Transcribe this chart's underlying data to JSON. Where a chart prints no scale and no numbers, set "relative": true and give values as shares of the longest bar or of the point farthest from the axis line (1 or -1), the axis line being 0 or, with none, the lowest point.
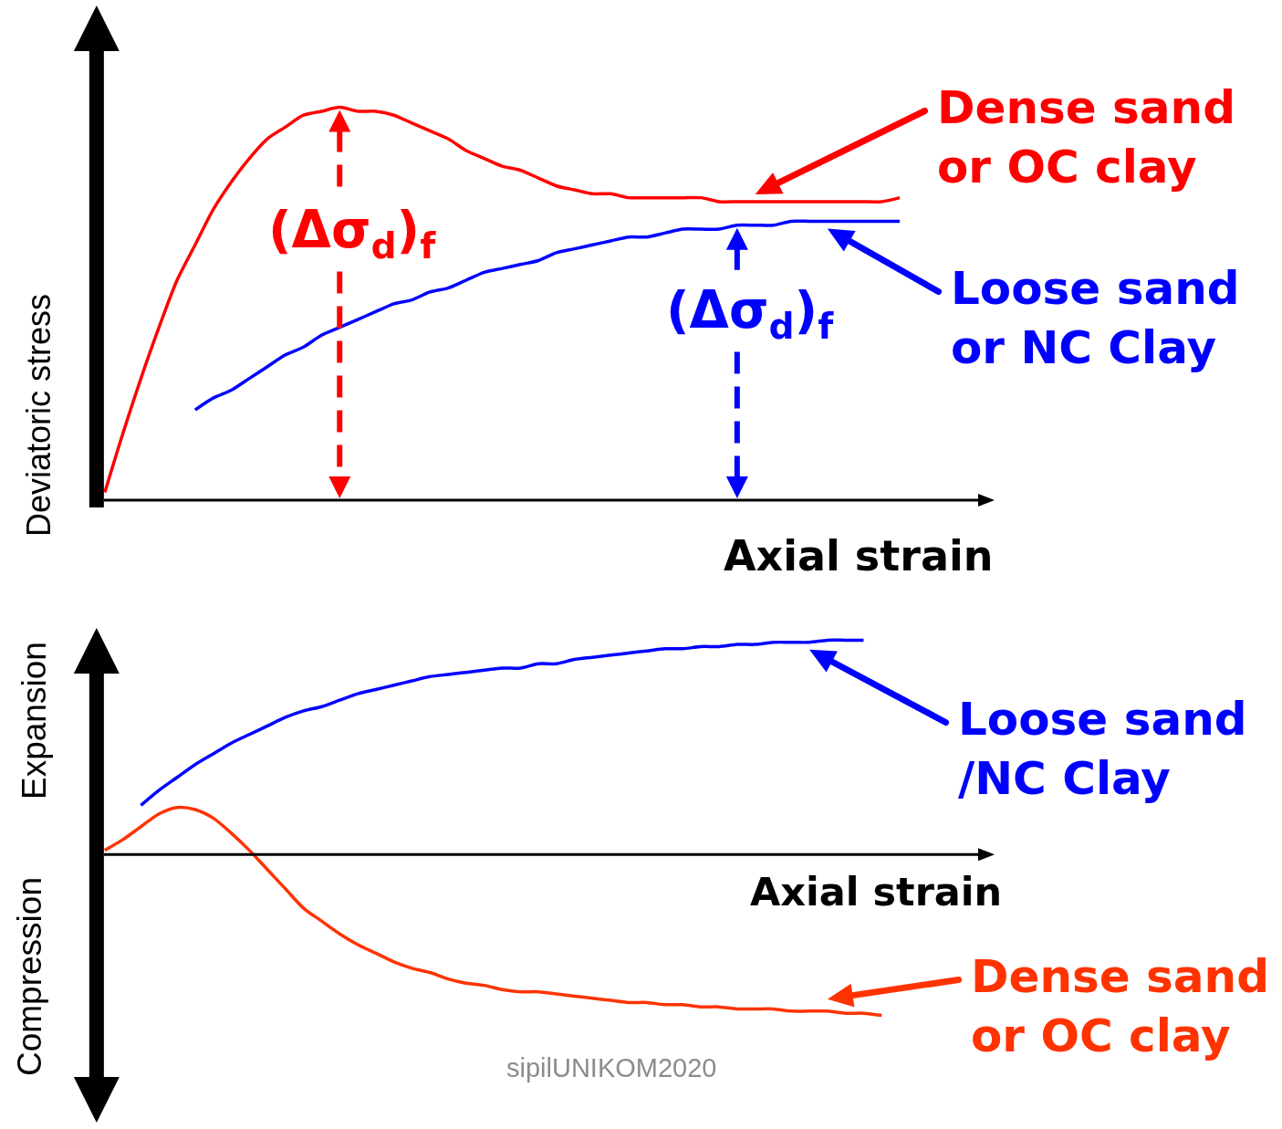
{
  "chart_data": [
    {
      "type": "line",
      "relative": true,
      "xlabel": "Axial strain",
      "ylabel": "Deviatoric stress",
      "legend": "top right",
      "categories": [
        null,
        null,
        null,
        null,
        null,
        null,
        null,
        null,
        null,
        null,
        null,
        null,
        null,
        null,
        null,
        null,
        null,
        null,
        null,
        null,
        null,
        null,
        null,
        null,
        null,
        null,
        null,
        null,
        null,
        null,
        null,
        null,
        null,
        null,
        null,
        null,
        null,
        null,
        null,
        null,
        null,
        null,
        null,
        null,
        null
      ],
      "series": [
        {
          "name": "Dense sand or OC clay",
          "color": "#ff0000",
          "values": [
            0.02,
            0.17,
            0.31,
            0.44,
            0.56,
            0.65,
            0.74,
            0.81,
            0.87,
            0.92,
            0.95,
            0.98,
            0.99,
            1,
            0.99,
            0.99,
            0.98,
            0.96,
            0.94,
            0.92,
            0.89,
            0.87,
            0.85,
            0.84,
            0.82,
            0.8,
            0.79,
            0.78,
            0.78,
            0.77,
            0.77,
            0.77,
            0.77,
            0.77,
            0.76,
            0.76,
            0.76,
            0.76,
            0.76,
            0.76,
            0.76,
            0.76,
            0.76,
            0.76,
            0.77
          ]
        },
        {
          "name": "Loose sand or NC Clay",
          "color": "#0000ff",
          "values": [
            null,
            null,
            null,
            null,
            null,
            0.23,
            0.26,
            0.28,
            0.31,
            0.34,
            0.37,
            0.39,
            0.42,
            0.44,
            0.46,
            0.48,
            0.5,
            0.51,
            0.53,
            0.54,
            0.56,
            0.58,
            0.59,
            0.6,
            0.61,
            0.63,
            0.64,
            0.65,
            0.66,
            0.67,
            0.67,
            0.68,
            0.69,
            0.69,
            0.69,
            0.7,
            0.7,
            0.7,
            0.71,
            0.71,
            0.71,
            0.71,
            0.71,
            0.71,
            0.71
          ]
        }
      ],
      "annotations": [
        {
          "text": "(Δσ$_{d}$)$_{f}$",
          "y": 1
        },
        {
          "text": "(Δσ$_{d}$)$_{f}$",
          "y": 0.7
        }
      ]
    },
    {
      "type": "line",
      "relative": true,
      "xlabel": "Axial strain",
      "legend": "right",
      "categories": [
        null,
        null,
        null,
        null,
        null,
        null,
        null,
        null,
        null,
        null,
        null,
        null,
        null,
        null,
        null,
        null,
        null,
        null,
        null,
        null,
        null,
        null,
        null,
        null,
        null,
        null,
        null,
        null,
        null,
        null,
        null,
        null,
        null,
        null,
        null,
        null,
        null,
        null,
        null,
        null,
        null,
        null,
        null,
        null,
        null
      ],
      "series": [
        {
          "name": "Loose sand /NC Clay",
          "color": "#0000ff",
          "values": [
            null,
            null,
            0.23,
            0.3,
            0.36,
            0.42,
            0.47,
            0.52,
            0.56,
            0.6,
            0.64,
            0.67,
            0.69,
            0.72,
            0.75,
            0.77,
            0.79,
            0.81,
            0.83,
            0.84,
            0.85,
            0.86,
            0.87,
            0.87,
            0.89,
            0.89,
            0.91,
            0.92,
            0.93,
            0.94,
            0.95,
            0.96,
            0.96,
            0.97,
            0.97,
            0.98,
            0.98,
            0.99,
            0.99,
            0.99,
            1,
            1,
            1,
            null,
            null
          ]
        },
        {
          "name": "Dense sand or OC clay",
          "color": "#ff3300",
          "values": [
            0.02,
            0.07,
            0.13,
            0.19,
            0.22,
            0.21,
            0.17,
            0.1,
            0.02,
            -0.07,
            -0.16,
            -0.25,
            -0.31,
            -0.37,
            -0.42,
            -0.46,
            -0.5,
            -0.53,
            -0.55,
            -0.58,
            -0.6,
            -0.61,
            -0.63,
            -0.64,
            -0.64,
            -0.65,
            -0.66,
            -0.67,
            -0.68,
            -0.69,
            -0.69,
            -0.7,
            -0.7,
            -0.71,
            -0.71,
            -0.72,
            -0.72,
            -0.72,
            -0.73,
            -0.73,
            -0.73,
            -0.74,
            -0.74,
            -0.75,
            null
          ]
        }
      ],
      "annotations": [
        "Expansion",
        "Compression",
        "sipilUNIKOM2020"
      ]
    }
  ]
}
